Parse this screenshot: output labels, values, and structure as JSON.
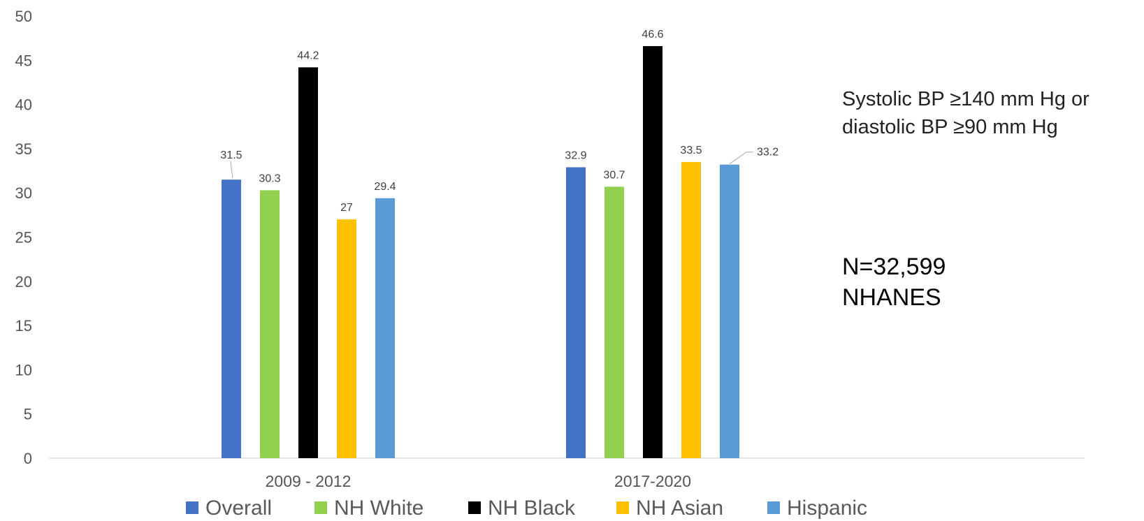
{
  "chart_data": {
    "type": "bar",
    "categories": [
      "2009 - 2012",
      "2017-2020"
    ],
    "series": [
      {
        "name": "Overall",
        "color": "#4472C4",
        "values": [
          31.5,
          32.9
        ]
      },
      {
        "name": "NH White",
        "color": "#92D050",
        "values": [
          30.3,
          30.7
        ]
      },
      {
        "name": "NH Black",
        "color": "#000000",
        "values": [
          44.2,
          46.6
        ]
      },
      {
        "name": "NH Asian",
        "color": "#FFC000",
        "values": [
          27,
          33.5
        ]
      },
      {
        "name": "Hispanic",
        "color": "#5B9BD5",
        "values": [
          29.4,
          33.2
        ]
      }
    ],
    "ylim": [
      0,
      50
    ],
    "yticks": [
      "0",
      "5",
      "10",
      "15",
      "20",
      "25",
      "30",
      "35",
      "40",
      "45",
      "50"
    ],
    "grid": false,
    "legend": "bottom",
    "data_labels": [
      "31.5",
      "30.3",
      "44.2",
      "27",
      "29.4",
      "32.9",
      "30.7",
      "46.6",
      "33.5",
      "33.2"
    ]
  },
  "annotations": {
    "criteria_line1": "Systolic BP ≥140 mm Hg or",
    "criteria_line2": "diastolic BP ≥90 mm Hg",
    "sample_size": "N=32,599",
    "source": "NHANES"
  }
}
